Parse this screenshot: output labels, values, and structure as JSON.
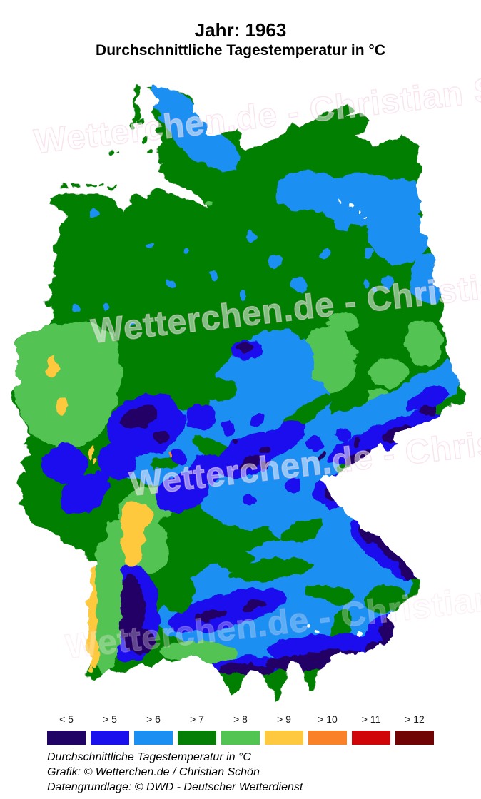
{
  "title": "Jahr: 1963",
  "subtitle": "Durchschnittliche Tagestemperatur in °C",
  "watermark": {
    "text": "Wetterchen.de - Christian Schön"
  },
  "legend": {
    "items": [
      {
        "label": "< 5",
        "color": "#200365"
      },
      {
        "label": "> 5",
        "color": "#1a10ee"
      },
      {
        "label": "> 6",
        "color": "#1b8ff2"
      },
      {
        "label": "> 7",
        "color": "#067f06"
      },
      {
        "label": "> 8",
        "color": "#52c452"
      },
      {
        "label": "> 9",
        "color": "#fec93e"
      },
      {
        "label": "> 10",
        "color": "#fa8128"
      },
      {
        "label": "> 11",
        "color": "#cf0508"
      },
      {
        "label": "> 12",
        "color": "#700404"
      }
    ]
  },
  "footer": {
    "line1": "Durchschnittliche Tagestemperatur in °C",
    "line2": "Grafik: © Wetterchen.de / Christian Schön",
    "line3": "Datengrundlage: © DWD - Deutscher Wetterdienst"
  },
  "map": {
    "region": "Deutschland",
    "kind": "raster-choropleth of average daily temperature, year 1963",
    "observations": [
      "Most of northern Germany > 7 °C (green)",
      "Eastern Schleswig-Holstein and Mecklenburg lake district > 6 °C (light blue)",
      "Central uplands (Sauerland, Harz, Rhön, Thüringer Wald, Erzgebirge) > 5 to > 6 °C with < 5 °C summits",
      "Lower Rhine lowland > 8 °C with small > 9 °C patches",
      "Leipzig/Magdeburg basin > 8 °C patches",
      "Upper Rhine valley strip > 9 °C, Neckar/Kraichgau > 9 °C strip",
      "Black Forest, Bavarian Forest and Alps < 5 °C",
      "Bavaria south of the Danube mostly > 6 °C"
    ]
  }
}
